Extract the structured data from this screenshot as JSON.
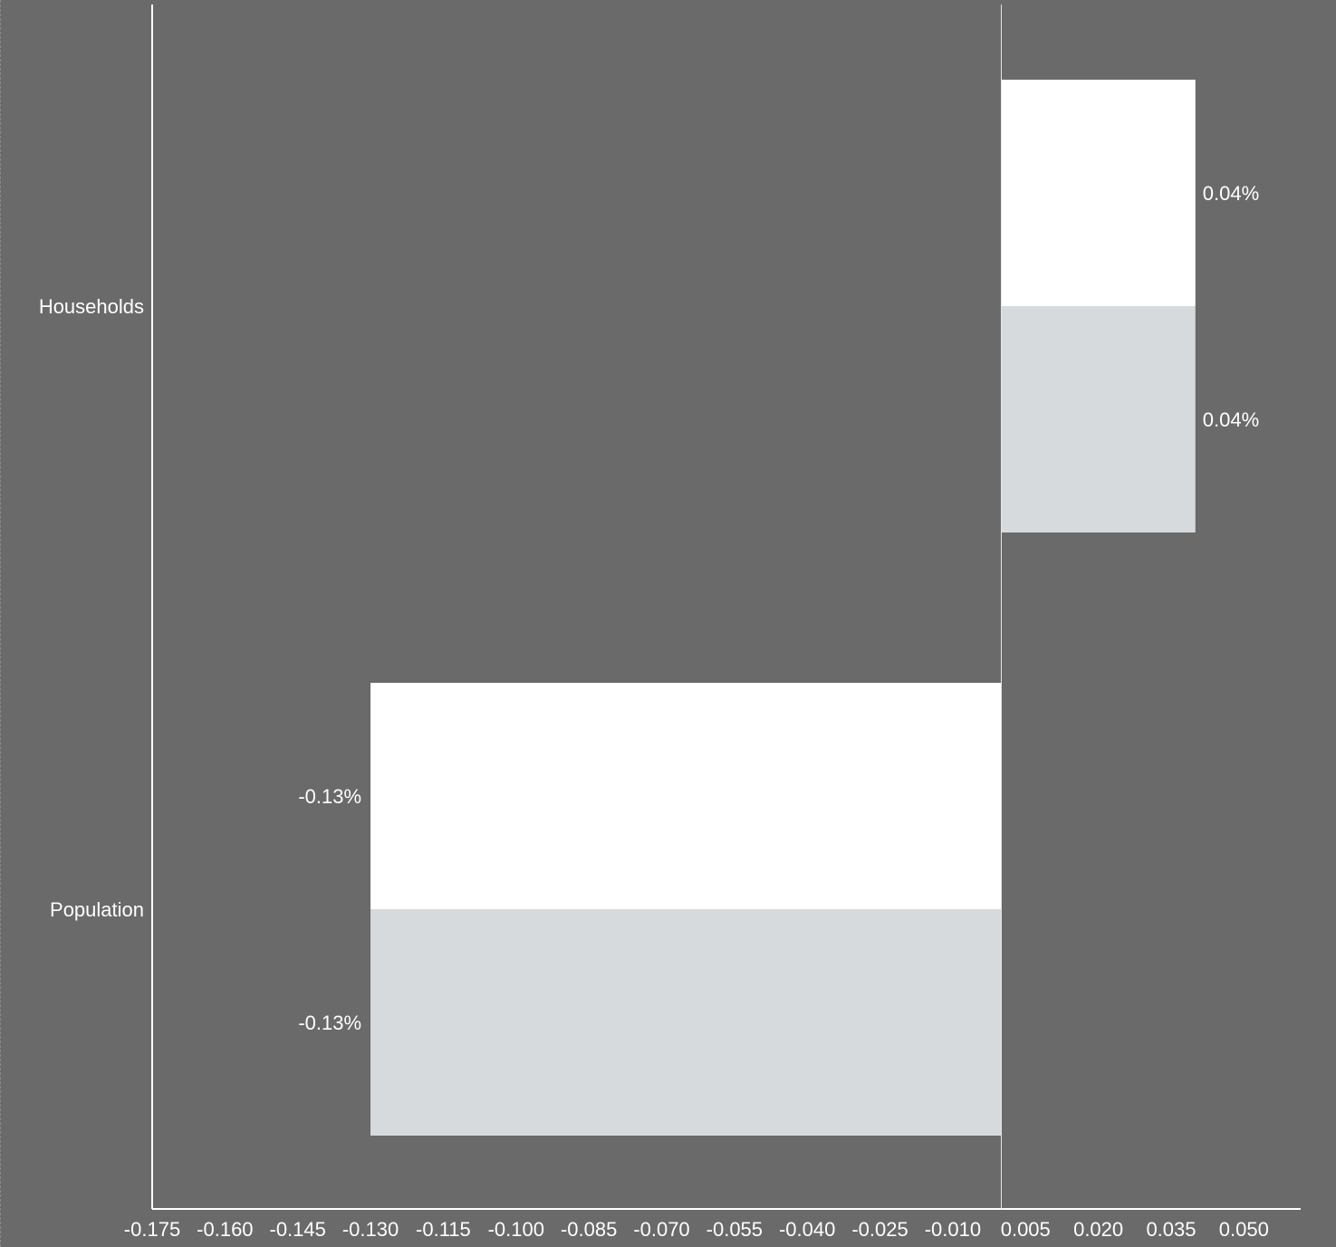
{
  "chart_data": {
    "type": "bar",
    "orientation": "horizontal",
    "categories": [
      "Households",
      "Population"
    ],
    "series": [
      {
        "values": [
          0.04,
          -0.13
        ],
        "labels": [
          "0.04%",
          "-0.13%"
        ],
        "color": "#ffffff"
      },
      {
        "values": [
          0.04,
          -0.13
        ],
        "labels": [
          "0.04%",
          "-0.13%"
        ],
        "color": "#d7dadd"
      }
    ],
    "xlim": [
      -0.175,
      0.055
    ],
    "xticks": [
      "-0.175",
      "-0.160",
      "-0.145",
      "-0.130",
      "-0.115",
      "-0.100",
      "-0.085",
      "-0.070",
      "-0.055",
      "-0.040",
      "-0.025",
      "-0.010",
      "0.005",
      "0.020",
      "0.035",
      "0.050"
    ],
    "title": "",
    "xlabel": "",
    "ylabel": "",
    "background": "#6a6a6a",
    "axis_color": "#ffffff"
  }
}
